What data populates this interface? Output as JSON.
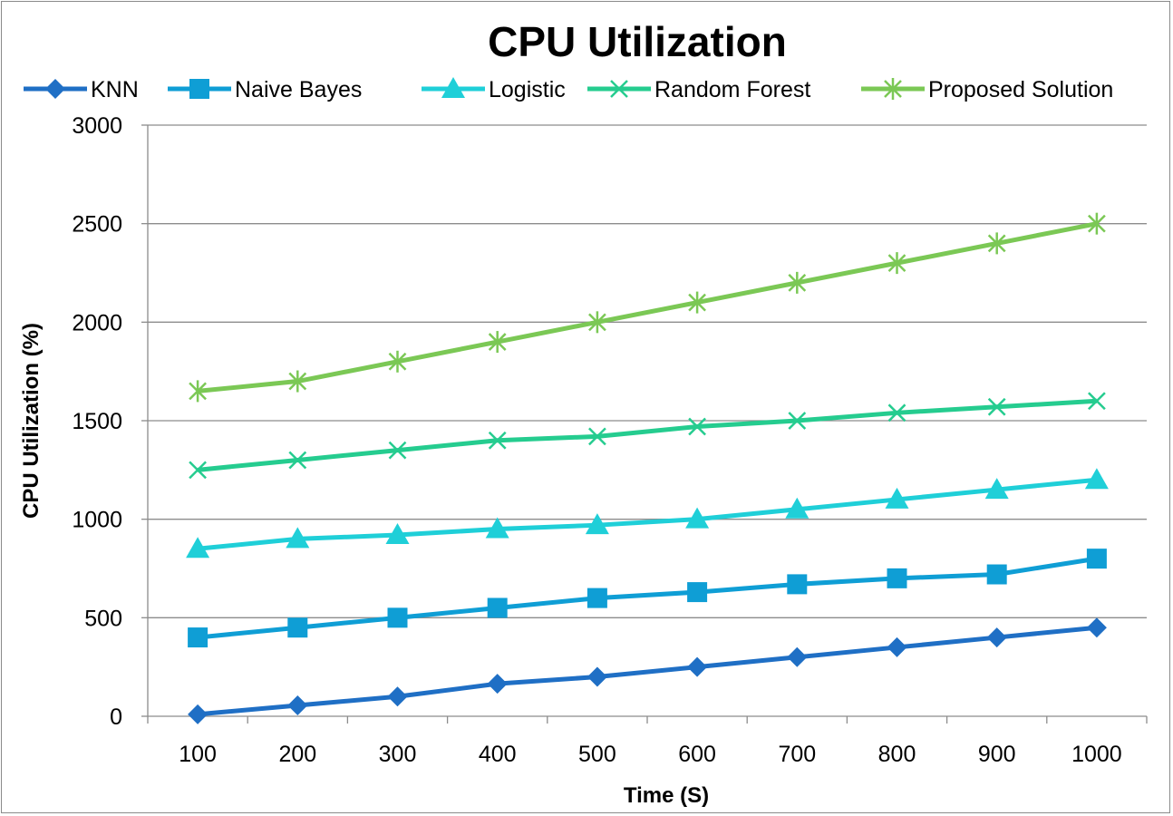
{
  "chart_data": {
    "type": "line",
    "title": "CPU Utilization",
    "xlabel": "Time (S)",
    "ylabel": "CPU Utilization (%)",
    "x": [
      100,
      200,
      300,
      400,
      500,
      600,
      700,
      800,
      900,
      1000
    ],
    "ylim": [
      0,
      3000
    ],
    "yticks": [
      0,
      500,
      1000,
      1500,
      2000,
      2500,
      3000
    ],
    "grid": true,
    "legend_position": "top",
    "series": [
      {
        "name": "KNN",
        "color": "#1F6FC5",
        "marker": "diamond",
        "values": [
          10,
          55,
          100,
          165,
          200,
          250,
          300,
          350,
          400,
          450
        ]
      },
      {
        "name": "Naive Bayes",
        "color": "#0F9ED5",
        "marker": "square",
        "values": [
          400,
          450,
          500,
          550,
          600,
          630,
          670,
          700,
          720,
          800
        ]
      },
      {
        "name": "Logistic",
        "color": "#1FCFD8",
        "marker": "triangle",
        "values": [
          850,
          900,
          920,
          950,
          970,
          1000,
          1050,
          1100,
          1150,
          1200
        ]
      },
      {
        "name": "Random Forest",
        "color": "#25CC8F",
        "marker": "x",
        "values": [
          1250,
          1300,
          1350,
          1400,
          1420,
          1470,
          1500,
          1540,
          1570,
          1600
        ]
      },
      {
        "name": "Proposed Solution",
        "color": "#7BC855",
        "marker": "star",
        "values": [
          1650,
          1700,
          1800,
          1900,
          2000,
          2100,
          2200,
          2300,
          2400,
          2500
        ]
      }
    ]
  }
}
